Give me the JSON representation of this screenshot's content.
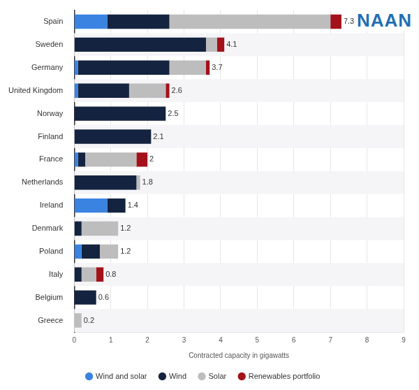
{
  "chart_data": {
    "type": "bar",
    "orientation": "horizontal",
    "stacked": true,
    "categories": [
      "Spain",
      "Sweden",
      "Germany",
      "United Kingdom",
      "Norway",
      "Finland",
      "France",
      "Netherlands",
      "Ireland",
      "Denmark",
      "Poland",
      "Italy",
      "Belgium",
      "Greece"
    ],
    "series": [
      {
        "name": "Wind and solar",
        "color": "#3a83e0",
        "values": [
          0.9,
          0,
          0.1,
          0.1,
          0,
          0,
          0.1,
          0,
          0.9,
          0,
          0.2,
          0,
          0,
          0
        ]
      },
      {
        "name": "Wind",
        "color": "#14233f",
        "values": [
          1.7,
          3.6,
          2.5,
          1.4,
          2.5,
          2.1,
          0.2,
          1.7,
          0.5,
          0.2,
          0.5,
          0.2,
          0.6,
          0
        ]
      },
      {
        "name": "Solar",
        "color": "#bdbdbd",
        "values": [
          4.4,
          0.3,
          1.0,
          1.0,
          0,
          0,
          1.4,
          0.1,
          0,
          1.0,
          0.5,
          0.4,
          0,
          0.2
        ]
      },
      {
        "name": "Renewables portfolio",
        "color": "#a3111a",
        "values": [
          0.3,
          0.2,
          0.1,
          0.1,
          0,
          0,
          0.3,
          0,
          0,
          0,
          0,
          0.2,
          0,
          0
        ]
      }
    ],
    "totals": [
      7.3,
      4.1,
      3.7,
      2.6,
      2.5,
      2.1,
      2,
      1.8,
      1.4,
      1.2,
      1.2,
      0.8,
      0.6,
      0.2
    ],
    "xlabel": "Contracted capacity in gigawatts",
    "xlim": [
      0,
      9
    ],
    "xticks": [
      0,
      1,
      2,
      3,
      4,
      5,
      6,
      7,
      8,
      9
    ],
    "grid": true,
    "legend": "bottom",
    "annotations": [
      "NAAN"
    ]
  }
}
